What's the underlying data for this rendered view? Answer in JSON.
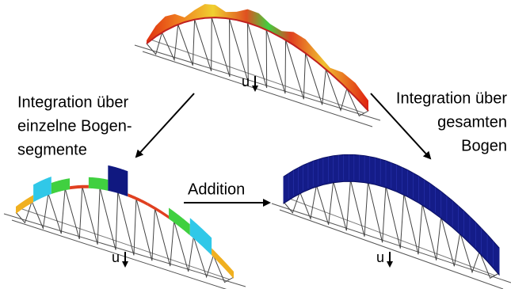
{
  "left_label": [
    "Integration über",
    "einzelne Bogen-",
    "segmente"
  ],
  "right_label": [
    "Integration über",
    "gesamten",
    "Bogen"
  ],
  "arrow_label": "Addition",
  "load_labels": [
    "u",
    "u",
    "u"
  ]
}
